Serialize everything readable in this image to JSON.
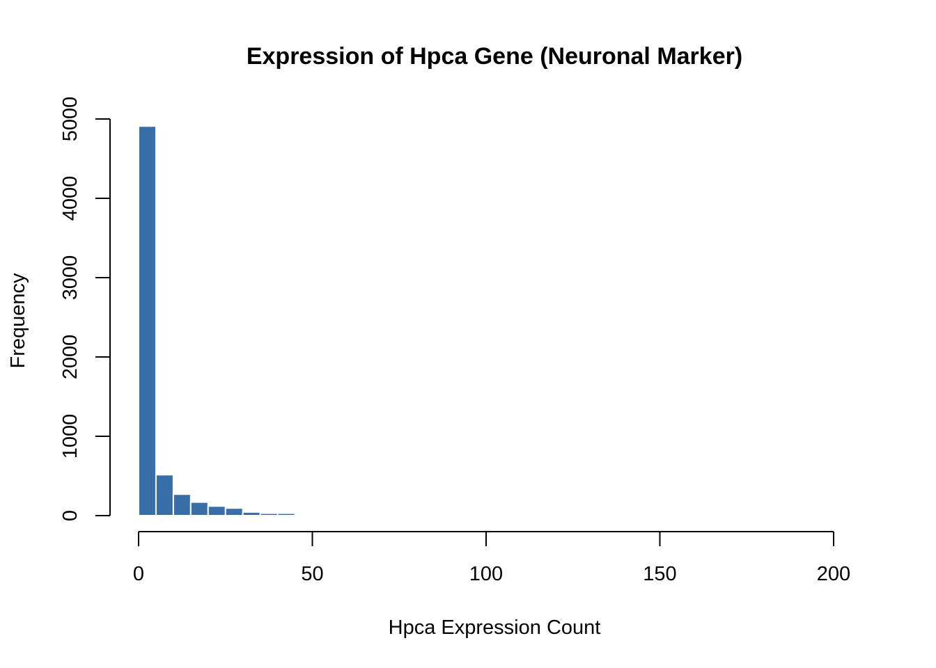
{
  "chart_data": {
    "type": "bar",
    "title": "Expression of Hpca Gene (Neuronal Marker)",
    "xlabel": "Hpca Expression Count",
    "ylabel": "Frequency",
    "xlim": [
      0,
      200
    ],
    "ylim": [
      0,
      5000
    ],
    "x_ticks": [
      "0",
      "50",
      "100",
      "150",
      "200"
    ],
    "y_ticks": [
      "0",
      "1000",
      "2000",
      "3000",
      "4000",
      "5000"
    ],
    "bin_width": 5,
    "bins": [
      {
        "start": 0,
        "end": 5,
        "count": 4910
      },
      {
        "start": 5,
        "end": 10,
        "count": 515
      },
      {
        "start": 10,
        "end": 15,
        "count": 270
      },
      {
        "start": 15,
        "end": 20,
        "count": 170
      },
      {
        "start": 20,
        "end": 25,
        "count": 120
      },
      {
        "start": 25,
        "end": 30,
        "count": 95
      },
      {
        "start": 30,
        "end": 35,
        "count": 45
      },
      {
        "start": 35,
        "end": 40,
        "count": 30
      },
      {
        "start": 40,
        "end": 45,
        "count": 30
      },
      {
        "start": 45,
        "end": 50,
        "count": 15
      },
      {
        "start": 50,
        "end": 55,
        "count": 12
      }
    ],
    "bar_color": "#3A6EA8",
    "bar_border_color": "#FFFFFF",
    "grid": false,
    "legend": "none"
  }
}
